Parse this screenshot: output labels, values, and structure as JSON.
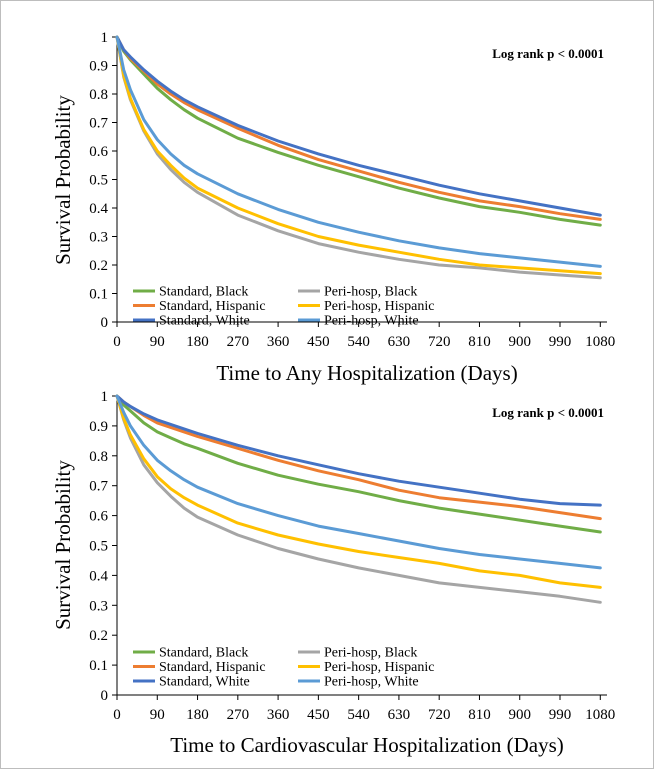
{
  "chart_data": [
    {
      "type": "line",
      "title": "",
      "xlabel": "Time to Any Hospitalization (Days)",
      "ylabel": "Survival Probability",
      "annotation": "Log rank p < 0.0001",
      "xlim": [
        0,
        1095
      ],
      "ylim": [
        0,
        1
      ],
      "x_ticks": [
        0,
        90,
        180,
        270,
        360,
        450,
        540,
        630,
        720,
        810,
        900,
        990,
        1080
      ],
      "y_ticks": [
        "0",
        "0.1",
        "0.2",
        "0.3",
        "0.4",
        "0.5",
        "0.6",
        "0.7",
        "0.8",
        "0.9",
        "1"
      ],
      "grid": false,
      "legend_position": "bottom-left",
      "x": [
        0,
        15,
        30,
        60,
        90,
        120,
        150,
        180,
        270,
        360,
        450,
        540,
        630,
        720,
        810,
        900,
        990,
        1080
      ],
      "series": [
        {
          "name": "Standard, Black",
          "color": "#70ad47",
          "values": [
            1.0,
            0.95,
            0.92,
            0.87,
            0.82,
            0.78,
            0.745,
            0.715,
            0.645,
            0.595,
            0.55,
            0.51,
            0.47,
            0.435,
            0.405,
            0.385,
            0.36,
            0.34
          ]
        },
        {
          "name": "Standard, Hispanic",
          "color": "#ed7d31",
          "values": [
            1.0,
            0.955,
            0.925,
            0.88,
            0.835,
            0.8,
            0.77,
            0.745,
            0.68,
            0.62,
            0.57,
            0.53,
            0.49,
            0.455,
            0.425,
            0.405,
            0.38,
            0.36
          ]
        },
        {
          "name": "Standard, White",
          "color": "#4472c4",
          "values": [
            1.0,
            0.955,
            0.93,
            0.885,
            0.845,
            0.81,
            0.78,
            0.755,
            0.69,
            0.635,
            0.59,
            0.55,
            0.515,
            0.48,
            0.45,
            0.425,
            0.4,
            0.375
          ]
        },
        {
          "name": "Peri-hosp, Black",
          "color": "#a5a5a5",
          "values": [
            1.0,
            0.86,
            0.78,
            0.67,
            0.59,
            0.535,
            0.49,
            0.455,
            0.375,
            0.32,
            0.275,
            0.245,
            0.22,
            0.2,
            0.19,
            0.175,
            0.165,
            0.155
          ]
        },
        {
          "name": "Peri-hosp, Hispanic",
          "color": "#ffc000",
          "values": [
            1.0,
            0.865,
            0.785,
            0.675,
            0.6,
            0.55,
            0.505,
            0.47,
            0.4,
            0.345,
            0.3,
            0.27,
            0.245,
            0.22,
            0.2,
            0.19,
            0.18,
            0.17
          ]
        },
        {
          "name": "Peri-hosp, White",
          "color": "#5b9bd5",
          "values": [
            1.0,
            0.885,
            0.815,
            0.71,
            0.64,
            0.59,
            0.55,
            0.52,
            0.45,
            0.395,
            0.35,
            0.315,
            0.285,
            0.26,
            0.24,
            0.225,
            0.21,
            0.195
          ]
        }
      ]
    },
    {
      "type": "line",
      "title": "",
      "xlabel": "Time to Cardiovascular Hospitalization (Days)",
      "ylabel": "Survival Probability",
      "annotation": "Log rank p < 0.0001",
      "xlim": [
        0,
        1095
      ],
      "ylim": [
        0,
        1
      ],
      "x_ticks": [
        0,
        90,
        180,
        270,
        360,
        450,
        540,
        630,
        720,
        810,
        900,
        990,
        1080
      ],
      "y_ticks": [
        "0",
        "0.1",
        "0.2",
        "0.3",
        "0.4",
        "0.5",
        "0.6",
        "0.7",
        "0.8",
        "0.9",
        "1"
      ],
      "grid": false,
      "legend_position": "bottom-left",
      "x": [
        0,
        15,
        30,
        60,
        90,
        120,
        150,
        180,
        270,
        360,
        450,
        540,
        630,
        720,
        810,
        900,
        990,
        1080
      ],
      "series": [
        {
          "name": "Standard, Black",
          "color": "#70ad47",
          "values": [
            1.0,
            0.97,
            0.95,
            0.91,
            0.88,
            0.86,
            0.84,
            0.825,
            0.775,
            0.735,
            0.705,
            0.68,
            0.65,
            0.625,
            0.605,
            0.585,
            0.565,
            0.545
          ]
        },
        {
          "name": "Standard, Hispanic",
          "color": "#ed7d31",
          "values": [
            1.0,
            0.98,
            0.965,
            0.935,
            0.91,
            0.895,
            0.88,
            0.865,
            0.825,
            0.785,
            0.75,
            0.72,
            0.685,
            0.66,
            0.645,
            0.63,
            0.61,
            0.59
          ]
        },
        {
          "name": "Standard, White",
          "color": "#4472c4",
          "values": [
            1.0,
            0.98,
            0.965,
            0.94,
            0.92,
            0.905,
            0.89,
            0.875,
            0.835,
            0.8,
            0.77,
            0.74,
            0.715,
            0.695,
            0.675,
            0.655,
            0.64,
            0.635
          ]
        },
        {
          "name": "Peri-hosp, Black",
          "color": "#a5a5a5",
          "values": [
            1.0,
            0.92,
            0.86,
            0.77,
            0.71,
            0.665,
            0.625,
            0.595,
            0.535,
            0.49,
            0.455,
            0.425,
            0.4,
            0.375,
            0.36,
            0.345,
            0.33,
            0.31
          ]
        },
        {
          "name": "Peri-hosp, Hispanic",
          "color": "#ffc000",
          "values": [
            1.0,
            0.925,
            0.87,
            0.79,
            0.73,
            0.69,
            0.66,
            0.635,
            0.575,
            0.535,
            0.505,
            0.48,
            0.46,
            0.44,
            0.415,
            0.4,
            0.375,
            0.36
          ]
        },
        {
          "name": "Peri-hosp, White",
          "color": "#5b9bd5",
          "values": [
            1.0,
            0.945,
            0.9,
            0.835,
            0.785,
            0.75,
            0.72,
            0.695,
            0.64,
            0.6,
            0.565,
            0.54,
            0.515,
            0.49,
            0.47,
            0.455,
            0.44,
            0.425
          ]
        }
      ]
    }
  ]
}
